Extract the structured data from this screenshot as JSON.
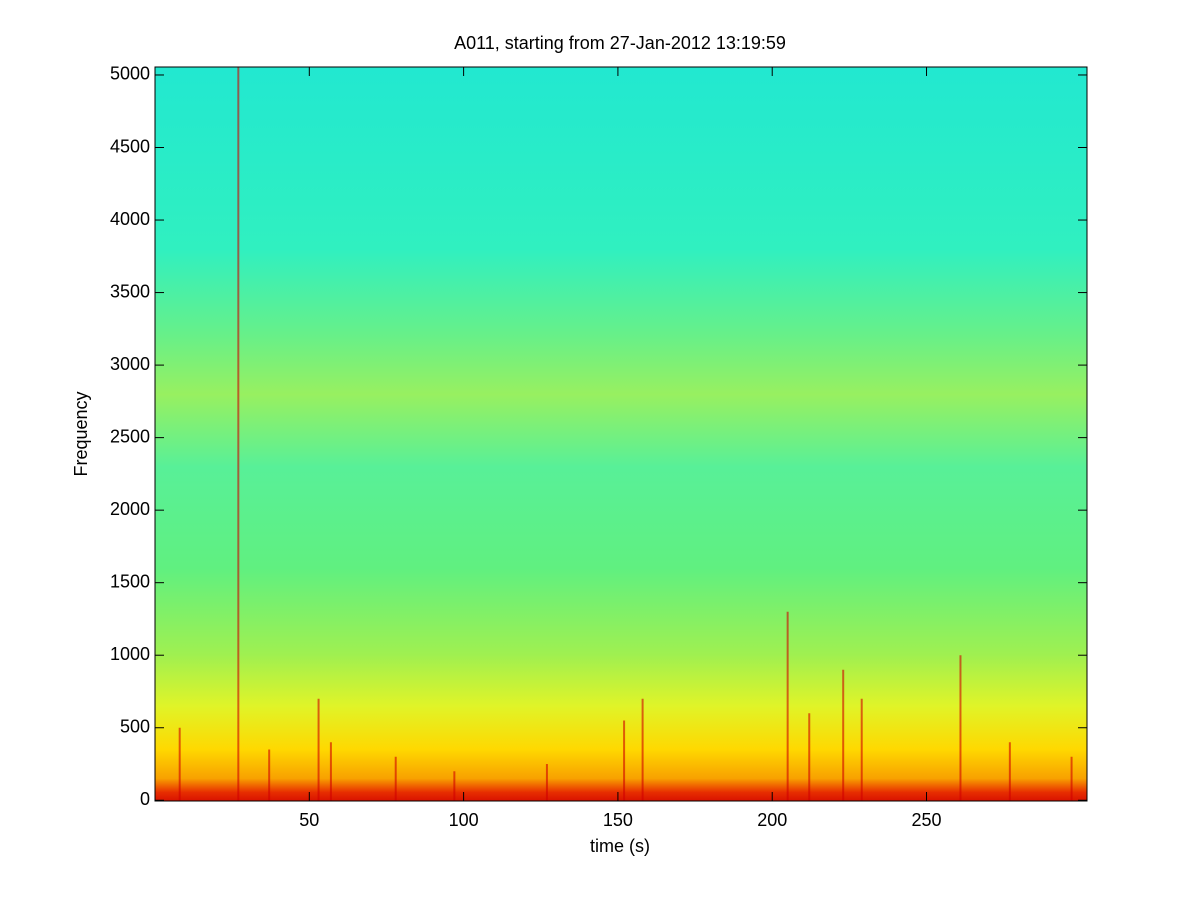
{
  "chart_data": {
    "type": "spectrogram",
    "title": "A011, starting from 27-Jan-2012 13:19:59",
    "x_label": "time (s)",
    "y_label": "Frequency",
    "xlim": [
      0,
      302
    ],
    "ylim": [
      -5,
      5055
    ],
    "xticks": [
      50,
      100,
      150,
      200,
      250
    ],
    "yticks": [
      0,
      500,
      1000,
      1500,
      2000,
      2500,
      3000,
      3500,
      4000,
      4500,
      5000
    ],
    "color_profile": [
      {
        "frequency": -5,
        "color": "#d81000"
      },
      {
        "frequency": 60,
        "color": "#e83000"
      },
      {
        "frequency": 150,
        "color": "#f8a000"
      },
      {
        "frequency": 350,
        "color": "#ffd800"
      },
      {
        "frequency": 650,
        "color": "#e0f428"
      },
      {
        "frequency": 1000,
        "color": "#a0f050"
      },
      {
        "frequency": 1600,
        "color": "#60f080"
      },
      {
        "frequency": 2300,
        "color": "#58f098"
      },
      {
        "frequency": 2800,
        "color": "#98f060"
      },
      {
        "frequency": 3200,
        "color": "#68f088"
      },
      {
        "frequency": 3800,
        "color": "#30f0c0"
      },
      {
        "frequency": 5055,
        "color": "#22e8d0"
      }
    ],
    "streaks": [
      {
        "time": 27,
        "top": 5055
      },
      {
        "time": 8,
        "top": 500
      },
      {
        "time": 37,
        "top": 350
      },
      {
        "time": 53,
        "top": 700
      },
      {
        "time": 57,
        "top": 400
      },
      {
        "time": 78,
        "top": 300
      },
      {
        "time": 97,
        "top": 200
      },
      {
        "time": 127,
        "top": 250
      },
      {
        "time": 152,
        "top": 550
      },
      {
        "time": 158,
        "top": 700
      },
      {
        "time": 205,
        "top": 1300
      },
      {
        "time": 212,
        "top": 600
      },
      {
        "time": 223,
        "top": 900
      },
      {
        "time": 229,
        "top": 700
      },
      {
        "time": 261,
        "top": 1000
      },
      {
        "time": 277,
        "top": 400
      },
      {
        "time": 297,
        "top": 300
      }
    ],
    "streak_color": "#d00000"
  }
}
